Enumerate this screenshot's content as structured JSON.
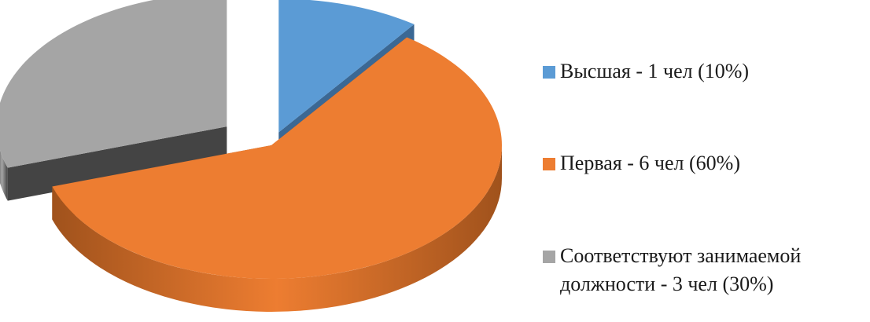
{
  "chart_data": {
    "type": "pie",
    "style": "3d-exploded",
    "title": "",
    "slices": [
      {
        "label": "Высшая - 1 чел (10%)",
        "value": 1,
        "percent": 10,
        "color": "#5b9bd5",
        "side_color": "#3b6894"
      },
      {
        "label": "Первая - 6 чел (60%)",
        "value": 6,
        "percent": 60,
        "color": "#ed7d31",
        "side_color": "#a0521c"
      },
      {
        "label": "Соответствуют занимаемой должности - 3 чел (30%)",
        "value": 3,
        "percent": 30,
        "color": "#a5a5a5",
        "side_color": "#444444"
      }
    ],
    "legend": {
      "position": "right",
      "items": [
        {
          "line1": "Высшая - 1 чел (10%)",
          "line2": ""
        },
        {
          "line1": "Первая - 6 чел (60%)",
          "line2": ""
        },
        {
          "line1": "Соответствуют занимаемой",
          "line2": "должности - 3 чел (30%)"
        }
      ]
    }
  }
}
